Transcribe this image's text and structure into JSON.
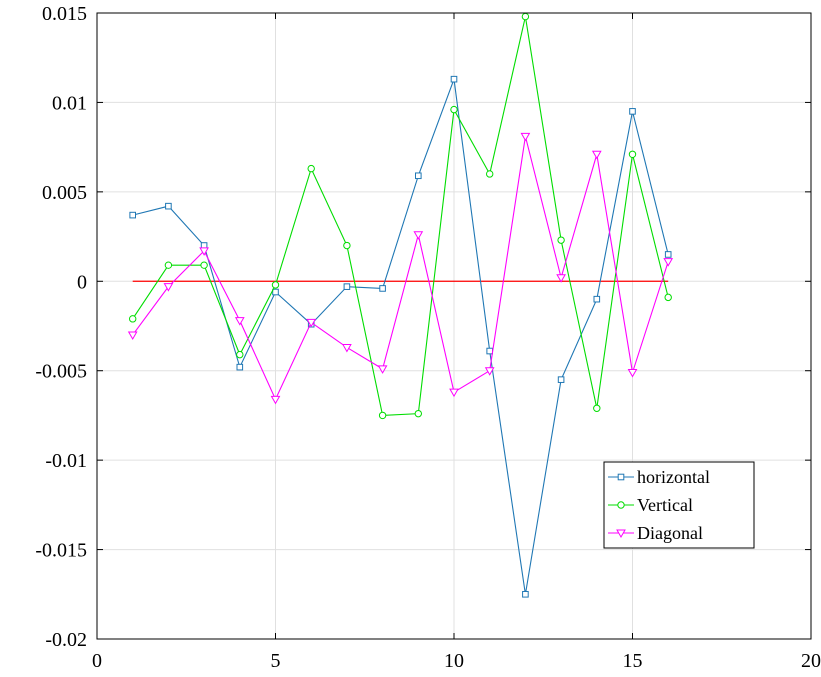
{
  "chart_data": {
    "type": "line",
    "title": "",
    "xlabel": "",
    "ylabel": "",
    "xlim": [
      0,
      20
    ],
    "ylim": [
      -0.02,
      0.015
    ],
    "xticks": [
      0,
      5,
      10,
      15,
      20
    ],
    "yticks": [
      -0.02,
      -0.015,
      -0.01,
      -0.005,
      0,
      0.005,
      0.01,
      0.015
    ],
    "xtick_labels": [
      "0",
      "5",
      "10",
      "15",
      "20"
    ],
    "ytick_labels": [
      "-0.02",
      "-0.015",
      "-0.01",
      "-0.005",
      "0",
      "0.005",
      "0.01",
      "0.015"
    ],
    "grid": true,
    "legend_position": "lower-right",
    "x": [
      1,
      2,
      3,
      4,
      5,
      6,
      7,
      8,
      9,
      10,
      11,
      12,
      13,
      14,
      15,
      16
    ],
    "series": [
      {
        "name": "horizontal",
        "color": "#1f77b4",
        "marker": "square",
        "values": [
          0.0037,
          0.0042,
          0.002,
          -0.0048,
          -0.0006,
          -0.0024,
          -0.0003,
          -0.0004,
          0.0059,
          0.0113,
          -0.0039,
          -0.0175,
          -0.0055,
          -0.001,
          0.0095,
          0.0015
        ]
      },
      {
        "name": "Vertical",
        "color": "#00dd00",
        "marker": "circle",
        "values": [
          -0.0021,
          0.0009,
          0.0009,
          -0.0041,
          -0.0002,
          0.0063,
          0.002,
          -0.0075,
          -0.0074,
          0.0096,
          0.006,
          0.0148,
          0.0023,
          -0.0071,
          0.0071,
          -0.0009
        ]
      },
      {
        "name": "Diagonal",
        "color": "#ff00ff",
        "marker": "triangle-down",
        "values": [
          -0.003,
          -0.0003,
          0.0017,
          -0.0022,
          -0.0066,
          -0.0023,
          -0.0037,
          -0.0049,
          0.0026,
          -0.0062,
          -0.005,
          0.0081,
          0.0002,
          0.0071,
          -0.0051,
          0.0011
        ]
      }
    ],
    "reference_line": {
      "y": 0,
      "x_range": [
        1,
        16
      ],
      "color": "#ff0000"
    }
  }
}
